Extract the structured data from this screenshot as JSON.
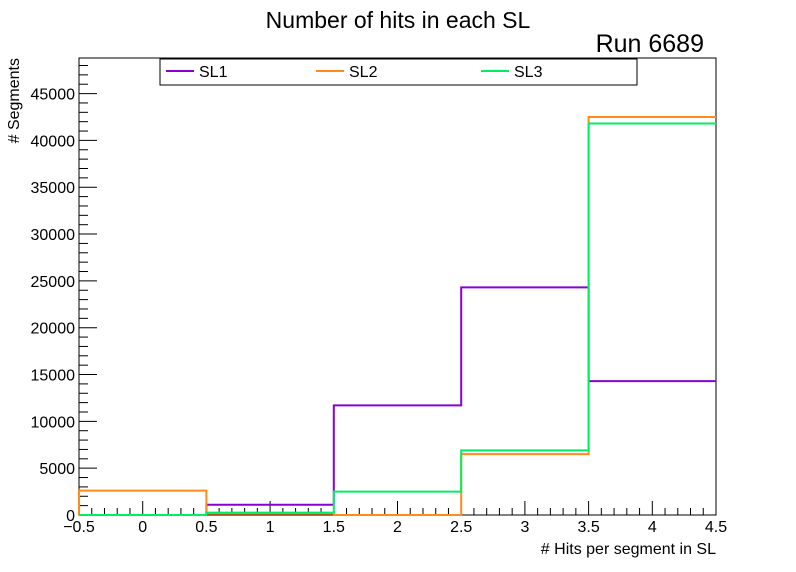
{
  "chart_data": {
    "type": "histogram",
    "title": "Number of hits in each SL",
    "run_label": "Run 6689",
    "xlabel": "# Hits per segment in SL",
    "ylabel": "# Segments",
    "xlim": [
      -0.5,
      4.5
    ],
    "ylim": [
      0,
      48800
    ],
    "x_ticks": [
      -0.5,
      0,
      0.5,
      1,
      1.5,
      2,
      2.5,
      3,
      3.5,
      4,
      4.5
    ],
    "x_tick_labels": [
      "−0.5",
      "0",
      "0.5",
      "1",
      "1.5",
      "2",
      "2.5",
      "3",
      "3.5",
      "4",
      "4.5"
    ],
    "y_ticks": [
      0,
      5000,
      10000,
      15000,
      20000,
      25000,
      30000,
      35000,
      40000,
      45000
    ],
    "y_tick_labels": [
      "0",
      "5000",
      "10000",
      "15000",
      "20000",
      "25000",
      "30000",
      "35000",
      "40000",
      "45000"
    ],
    "bin_edges": [
      -0.5,
      0.5,
      1.5,
      2.5,
      3.5,
      4.5
    ],
    "series": [
      {
        "name": "SL1",
        "color": "#8a00d4",
        "values": [
          0,
          1100,
          11700,
          24300,
          14300
        ]
      },
      {
        "name": "SL2",
        "color": "#ff8c1a",
        "values": [
          2600,
          150,
          0,
          6500,
          42500
        ]
      },
      {
        "name": "SL3",
        "color": "#00ee66",
        "values": [
          0,
          250,
          2500,
          6900,
          41800
        ]
      }
    ],
    "legend_position": "top"
  }
}
